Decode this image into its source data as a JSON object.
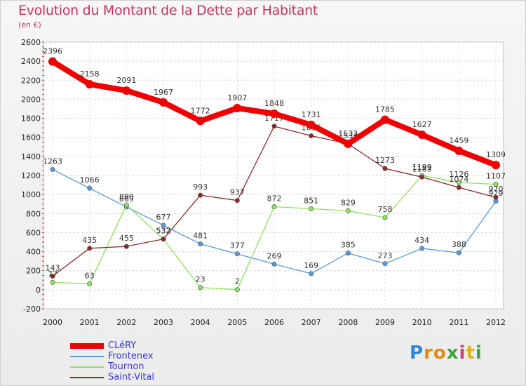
{
  "header": {
    "title": "Evolution du Montant de la Dette par Habitant",
    "unit": "(en €)"
  },
  "logo": {
    "letters": [
      "P",
      "r",
      "o",
      "x",
      "i",
      "t",
      "i"
    ],
    "colors": [
      "#2f86d6",
      "#e08a18",
      "#e08a18",
      "#3aa63a",
      "#d63a7a",
      "#e0b418",
      "#3aa63a"
    ]
  },
  "chart_data": {
    "type": "line",
    "title": "Evolution du Montant de la Dette par Habitant",
    "ylabel": "(en €)",
    "x": [
      "2000",
      "2001",
      "2002",
      "2003",
      "2004",
      "2005",
      "2006",
      "2007",
      "2008",
      "2009",
      "2010",
      "2011",
      "2012"
    ],
    "ylim": [
      -200,
      2600
    ],
    "yticks": [
      -200,
      0,
      200,
      400,
      600,
      800,
      1000,
      1200,
      1400,
      1600,
      1800,
      2000,
      2200,
      2400,
      2600
    ],
    "grid": true,
    "legend_position": "bottom-left",
    "series": [
      {
        "name": "CLéRY",
        "color": "#ee0000",
        "values": [
          2396,
          2158,
          2091,
          1967,
          1772,
          1907,
          1848,
          1731,
          1532,
          1785,
          1627,
          1459,
          1309
        ]
      },
      {
        "name": "Frontenex",
        "color": "#5b9bd5",
        "values": [
          1263,
          1066,
          869,
          677,
          481,
          377,
          269,
          169,
          385,
          273,
          434,
          388,
          929
        ]
      },
      {
        "name": "Tournon",
        "color": "#90e060",
        "values": [
          77,
          63,
          890,
          532,
          23,
          2,
          872,
          851,
          829,
          758,
          1199,
          1126,
          1107
        ]
      },
      {
        "name": "Saint-Vital",
        "color": "#8b2a2a",
        "values": [
          143,
          435,
          455,
          532,
          993,
          937,
          1717,
          1616,
          1533,
          1273,
          1183,
          1074,
          970
        ]
      }
    ]
  }
}
